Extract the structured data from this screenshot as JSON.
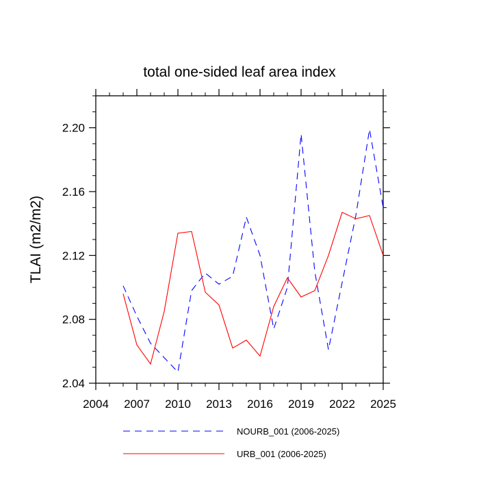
{
  "chart_data": {
    "type": "line",
    "title": "total one-sided leaf area index",
    "ylabel": "TLAI  (m2/m2)",
    "xlabel": "",
    "xlim": [
      2004,
      2025
    ],
    "ylim": [
      2.04,
      2.22
    ],
    "xticks": [
      2004,
      2007,
      2010,
      2013,
      2016,
      2019,
      2022,
      2025
    ],
    "yticks": [
      2.04,
      2.08,
      2.12,
      2.16,
      2.2
    ],
    "ytick_labels": [
      "2.04",
      "2.08",
      "2.12",
      "2.16",
      "2.20"
    ],
    "x": [
      2006,
      2007,
      2008,
      2009,
      2010,
      2011,
      2012,
      2013,
      2014,
      2015,
      2016,
      2017,
      2018,
      2019,
      2020,
      2021,
      2022,
      2023,
      2024,
      2025
    ],
    "series": [
      {
        "name": "NOURB_001 (2006-2025)",
        "color": "#0000ff",
        "dash": "dashed",
        "values": [
          2.101,
          2.082,
          2.065,
          2.056,
          2.047,
          2.098,
          2.109,
          2.102,
          2.107,
          2.144,
          2.12,
          2.074,
          2.1,
          2.196,
          2.11,
          2.061,
          2.103,
          2.145,
          2.199,
          2.15
        ]
      },
      {
        "name": "URB_001 (2006-2025)",
        "color": "#ff0000",
        "dash": "solid",
        "values": [
          2.096,
          2.064,
          2.052,
          2.085,
          2.134,
          2.135,
          2.097,
          2.089,
          2.062,
          2.067,
          2.057,
          2.088,
          2.106,
          2.094,
          2.098,
          2.12,
          2.147,
          2.143,
          2.145,
          2.12
        ]
      }
    ],
    "legend_position": "bottom"
  }
}
